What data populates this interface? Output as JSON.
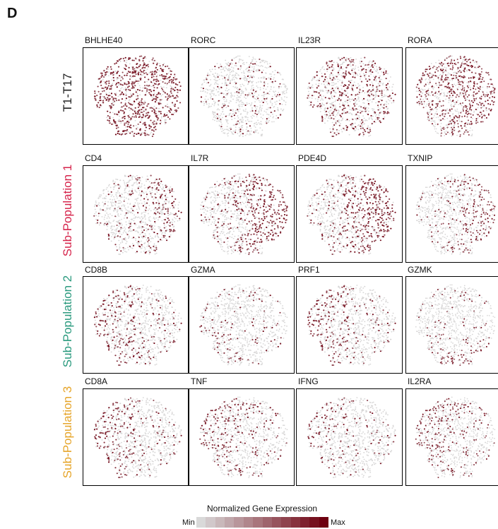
{
  "panel_letter": "D",
  "rows": [
    {
      "label": "T1-T17",
      "color": "#222222"
    },
    {
      "label": "Sub-Population 1",
      "color": "#d6254c"
    },
    {
      "label": "Sub-Population 2",
      "color": "#2a9a7e"
    },
    {
      "label": "Sub-Population 3",
      "color": "#e6a52a"
    }
  ],
  "genes": [
    [
      "BHLHE40",
      "RORC",
      "IL23R",
      "RORA"
    ],
    [
      "CD4",
      "IL7R",
      "PDE4D",
      "TXNIP"
    ],
    [
      "CD8B",
      "GZMA",
      "PRF1",
      "GZMK"
    ],
    [
      "CD8A",
      "TNF",
      "IFNG",
      "IL2RA"
    ]
  ],
  "legend": {
    "title": "Normalized Gene Expression",
    "min_label": "Min",
    "max_label": "Max",
    "low_color": "#d9d9d9",
    "high_color": "#6e0010"
  },
  "chart_data": {
    "type": "scatter",
    "description_of_panels": "UMAP feature plots, one per gene; point color = normalized expression",
    "expression_focus": [
      [
        "uniform-high",
        "uniform-low",
        "uniform-mid",
        "upper-right"
      ],
      [
        "right",
        "right-strong",
        "right-strong",
        "right"
      ],
      [
        "left-bottom",
        "lower-left-sparse",
        "left",
        "bottom"
      ],
      [
        "left",
        "upper-left",
        "upper-left-sparse",
        "upper-left"
      ]
    ]
  }
}
